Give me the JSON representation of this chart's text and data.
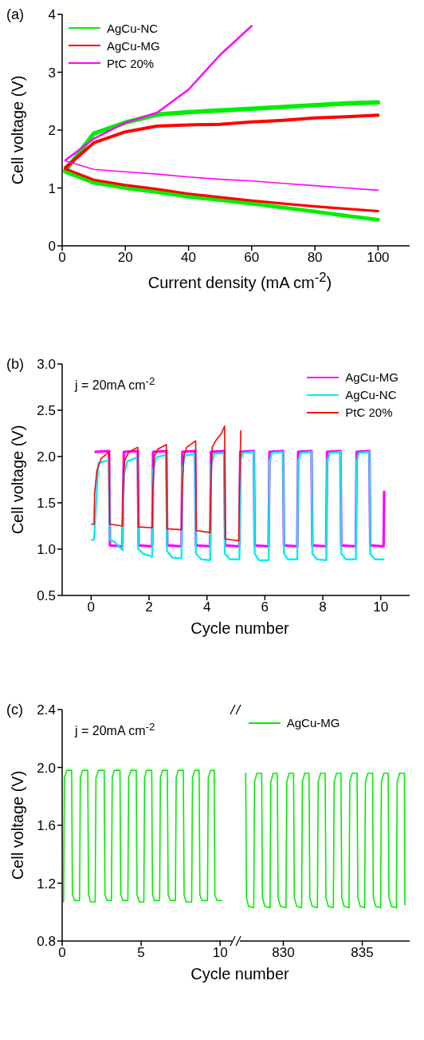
{
  "chart_data": [
    {
      "type": "line",
      "title": "(a)",
      "xlabel": "Current density (mA cm$^{-2}$)",
      "ylabel": "Cell voltage (V)",
      "xlim": [
        0,
        110
      ],
      "xticks": [
        0,
        20,
        40,
        60,
        80,
        100
      ],
      "ylim": [
        0,
        4
      ],
      "yticks": [
        0,
        1,
        2,
        3,
        4
      ],
      "legend": "top left",
      "marker": "none",
      "line_style": "solid",
      "series": [
        {
          "name": "AgCu-NC",
          "color": "#00ee00",
          "x": [
            1,
            10,
            20,
            30,
            40,
            50,
            60,
            70,
            80,
            90,
            100
          ],
          "values": [
            1.3,
            1.94,
            2.13,
            2.27,
            2.31,
            2.34,
            2.37,
            2.4,
            2.43,
            2.46,
            2.48
          ]
        },
        {
          "color": "#00ee00",
          "x": [
            1,
            10,
            20,
            30,
            40,
            50,
            60,
            70,
            80,
            90,
            100
          ],
          "values": [
            1.28,
            1.09,
            1.0,
            0.93,
            0.85,
            0.79,
            0.73,
            0.66,
            0.59,
            0.52,
            0.45
          ]
        },
        {
          "name": "AgCu-MG",
          "color": "#ff0000",
          "x": [
            1,
            10,
            20,
            30,
            40,
            50,
            60,
            70,
            80,
            90,
            100
          ],
          "values": [
            1.35,
            1.78,
            1.97,
            2.07,
            2.09,
            2.1,
            2.14,
            2.17,
            2.21,
            2.23,
            2.26
          ]
        },
        {
          "color": "#ff0000",
          "x": [
            1,
            10,
            20,
            30,
            40,
            50,
            60,
            70,
            80,
            90,
            100
          ],
          "values": [
            1.33,
            1.14,
            1.05,
            0.98,
            0.9,
            0.84,
            0.78,
            0.73,
            0.68,
            0.64,
            0.6
          ]
        },
        {
          "name": "PtC 20%",
          "color": "#ff00ff",
          "x": [
            1,
            10,
            20,
            30,
            40,
            50,
            60
          ],
          "values": [
            1.48,
            1.85,
            2.13,
            2.3,
            2.7,
            3.3,
            3.8
          ]
        },
        {
          "color": "#ff00ff",
          "x": [
            1,
            10,
            20,
            30,
            40,
            50,
            60,
            70,
            80,
            90,
            100
          ],
          "values": [
            1.47,
            1.32,
            1.28,
            1.24,
            1.19,
            1.15,
            1.12,
            1.08,
            1.04,
            1.0,
            0.96
          ]
        }
      ]
    },
    {
      "type": "line",
      "title": "(b)",
      "xlabel": "Cycle number",
      "ylabel": "Cell voltage (V)",
      "annotations": [
        "j = 20mA cm$^{-2}$"
      ],
      "xlim": [
        -1,
        11
      ],
      "xticks": [
        0,
        2,
        4,
        6,
        8,
        10
      ],
      "ylim": [
        0.5,
        3
      ],
      "yticks": [
        {
          "value": 0.5,
          "label": "0.5"
        },
        {
          "value": 1,
          "label": "1.0"
        },
        {
          "value": 1.5,
          "label": "1.5"
        },
        {
          "value": 2,
          "label": "2.0"
        },
        {
          "value": 2.5,
          "label": "2.5"
        },
        {
          "value": 3,
          "label": "3.0"
        }
      ],
      "legend": "top right",
      "marker": "none",
      "line_style": "solid",
      "series": [
        {
          "name": "AgCu-MG",
          "color": "#ff00ff",
          "x": [
            0.15,
            0.62,
            0.65,
            1.08,
            1.13,
            1.61,
            1.64,
            2.11,
            2.14,
            2.6,
            2.63,
            3.12,
            3.15,
            3.59,
            3.62,
            4.11,
            4.14,
            4.6,
            4.63,
            5.12,
            5.15,
            5.62,
            5.65,
            6.13,
            6.16,
            6.63,
            6.66,
            7.12,
            7.15,
            7.61,
            7.64,
            8.12,
            8.15,
            8.61,
            8.64,
            9.14,
            9.17,
            9.61,
            9.64,
            10.1,
            10.12
          ],
          "values": [
            2.05,
            2.06,
            1.04,
            1.03,
            2.05,
            2.06,
            1.04,
            1.03,
            2.05,
            2.06,
            1.04,
            1.03,
            2.05,
            2.06,
            1.04,
            1.03,
            2.05,
            2.06,
            1.04,
            1.03,
            2.05,
            2.06,
            1.04,
            1.03,
            2.05,
            2.06,
            1.04,
            1.03,
            2.05,
            2.06,
            1.04,
            1.03,
            2.05,
            2.06,
            1.04,
            1.03,
            2.05,
            2.06,
            1.04,
            1.03,
            1.62
          ]
        },
        {
          "name": "AgCu-NC",
          "color": "#00eeee",
          "x": [
            0.02,
            0.1,
            0.25,
            0.62,
            0.64,
            0.8,
            1.08,
            1.13,
            1.25,
            1.61,
            1.63,
            1.8,
            2.11,
            2.14,
            2.25,
            2.6,
            2.62,
            2.8,
            3.12,
            3.15,
            3.25,
            3.59,
            3.62,
            3.8,
            4.11,
            4.14,
            4.25,
            4.6,
            4.62,
            4.8,
            5.12,
            5.15,
            5.25,
            5.62,
            5.65,
            5.8,
            6.13,
            6.16,
            6.25,
            6.63,
            6.66,
            6.8,
            7.12,
            7.15,
            7.25,
            7.61,
            7.64,
            7.8,
            8.12,
            8.15,
            8.25,
            8.61,
            8.64,
            8.8,
            9.14,
            9.17,
            9.25,
            9.61,
            9.64,
            9.8,
            10.1
          ],
          "values": [
            1.1,
            1.1,
            1.93,
            1.96,
            1.1,
            1.08,
            0.99,
            1.8,
            1.95,
            1.99,
            1.0,
            0.95,
            0.92,
            1.85,
            1.99,
            2.02,
            0.98,
            0.91,
            0.9,
            1.88,
            2.01,
            2.03,
            0.95,
            0.89,
            0.88,
            1.9,
            2.03,
            2.04,
            0.95,
            0.89,
            0.89,
            1.95,
            2.04,
            2.05,
            0.95,
            0.88,
            0.88,
            1.95,
            2.04,
            2.05,
            0.95,
            0.89,
            0.89,
            1.95,
            2.04,
            2.05,
            0.95,
            0.89,
            0.88,
            1.95,
            2.04,
            2.05,
            0.95,
            0.89,
            0.89,
            1.95,
            2.04,
            2.05,
            0.95,
            0.89,
            0.89
          ]
        },
        {
          "name": "PtC 20%",
          "color": "#ff0000",
          "x": [
            0.02,
            0.1,
            0.12,
            0.2,
            0.35,
            0.62,
            0.64,
            1.08,
            1.1,
            1.15,
            1.3,
            1.61,
            1.63,
            2.11,
            2.13,
            2.18,
            2.3,
            2.6,
            2.62,
            3.12,
            3.14,
            3.2,
            3.3,
            3.61,
            3.63,
            4.11,
            4.13,
            4.18,
            4.3,
            4.5,
            4.61,
            4.63,
            5.1,
            5.12,
            5.17
          ],
          "values": [
            1.27,
            1.27,
            1.6,
            1.85,
            1.98,
            2.05,
            1.27,
            1.25,
            1.6,
            1.95,
            2.05,
            2.1,
            1.24,
            1.23,
            1.6,
            2.0,
            2.08,
            2.13,
            1.22,
            1.21,
            1.6,
            2.0,
            2.1,
            2.17,
            1.2,
            1.18,
            1.6,
            2.1,
            2.17,
            2.25,
            2.33,
            1.11,
            1.09,
            1.6,
            2.28
          ]
        }
      ]
    },
    {
      "type": "line",
      "title": "(c)",
      "xlabel": "Cycle number",
      "ylabel": "Cell voltage (V)",
      "annotations": [
        "j = 20mA cm$^{-2}$"
      ],
      "xlim": [
        0,
        11
      ],
      "xticks": [
        0,
        5,
        10
      ],
      "ylim": [
        0.8,
        2.4
      ],
      "yticks": [
        0.8,
        1.2,
        1.6,
        {
          "value": 2,
          "label": "2.0"
        },
        2.4
      ],
      "legend": "top right",
      "marker": "none",
      "line_style": "solid",
      "series": [
        {
          "name": "AgCu-MG",
          "color": "#00ee00",
          "x": [
            0.05,
            0.09,
            0.14,
            0.3,
            0.6,
            0.65,
            0.8,
            1.1,
            1.15,
            1.3,
            1.62,
            1.67,
            1.8,
            2.09,
            2.14,
            2.3,
            2.66,
            2.71,
            2.85,
            3.12,
            3.17,
            3.3,
            3.66,
            3.71,
            3.85,
            4.16,
            4.21,
            4.35,
            4.69,
            4.74,
            4.9,
            5.17,
            5.22,
            5.35,
            5.67,
            5.72,
            5.85,
            6.17,
            6.22,
            6.35,
            6.66,
            6.71,
            6.85,
            7.17,
            7.22,
            7.35,
            7.67,
            7.72,
            7.85,
            8.2,
            8.25,
            8.4,
            8.67,
            8.72,
            8.85,
            9.2,
            9.25,
            9.4,
            9.62,
            9.67,
            9.8,
            10.1
          ],
          "values": [
            1.07,
            1.07,
            1.93,
            1.98,
            1.98,
            1.12,
            1.08,
            1.08,
            1.93,
            1.98,
            1.98,
            1.12,
            1.07,
            1.07,
            1.93,
            1.98,
            1.98,
            1.12,
            1.08,
            1.08,
            1.93,
            1.98,
            1.98,
            1.12,
            1.08,
            1.08,
            1.93,
            1.98,
            1.98,
            1.12,
            1.07,
            1.07,
            1.93,
            1.98,
            1.98,
            1.12,
            1.08,
            1.08,
            1.93,
            1.98,
            1.98,
            1.12,
            1.08,
            1.08,
            1.93,
            1.98,
            1.98,
            1.12,
            1.07,
            1.07,
            1.93,
            1.98,
            1.98,
            1.12,
            1.08,
            1.08,
            1.93,
            1.98,
            1.98,
            1.12,
            1.08,
            1.08
          ]
        }
      ]
    },
    {
      "type": "line",
      "xlim": [
        827,
        838
      ],
      "xticks": [
        830,
        835
      ],
      "ylim": [
        0.8,
        2.4
      ],
      "tick_labels": "x",
      "marker": "none",
      "line_style": "solid",
      "series": [
        {
          "color": "#00ee00",
          "x": [
            827.62,
            827.67,
            827.8,
            828.13,
            828.18,
            828.33,
            828.63,
            828.68,
            828.83,
            829.16,
            829.21,
            829.36,
            829.62,
            829.67,
            829.82,
            830.17,
            830.22,
            830.37,
            830.65,
            830.7,
            830.85,
            831.16,
            831.21,
            831.36,
            831.63,
            831.68,
            831.83,
            832.16,
            832.21,
            832.36,
            832.65,
            832.7,
            832.85,
            833.17,
            833.22,
            833.37,
            833.65,
            833.7,
            833.85,
            834.16,
            834.21,
            834.36,
            834.67,
            834.72,
            834.87,
            835.15,
            835.2,
            835.35,
            835.65,
            835.7,
            835.85,
            836.16,
            836.21,
            836.36,
            836.64,
            836.69,
            836.84,
            837.16,
            837.21,
            837.36,
            837.67,
            837.7
          ],
          "values": [
            1.96,
            1.1,
            1.04,
            1.03,
            1.9,
            1.96,
            1.96,
            1.1,
            1.04,
            1.03,
            1.9,
            1.96,
            1.96,
            1.1,
            1.04,
            1.03,
            1.9,
            1.96,
            1.96,
            1.1,
            1.04,
            1.03,
            1.9,
            1.96,
            1.96,
            1.1,
            1.04,
            1.03,
            1.9,
            1.96,
            1.96,
            1.1,
            1.04,
            1.03,
            1.9,
            1.96,
            1.96,
            1.1,
            1.04,
            1.03,
            1.9,
            1.96,
            1.96,
            1.1,
            1.04,
            1.03,
            1.9,
            1.96,
            1.96,
            1.1,
            1.04,
            1.03,
            1.9,
            1.96,
            1.96,
            1.1,
            1.04,
            1.03,
            1.9,
            1.96,
            1.96,
            1.05
          ]
        }
      ]
    }
  ]
}
